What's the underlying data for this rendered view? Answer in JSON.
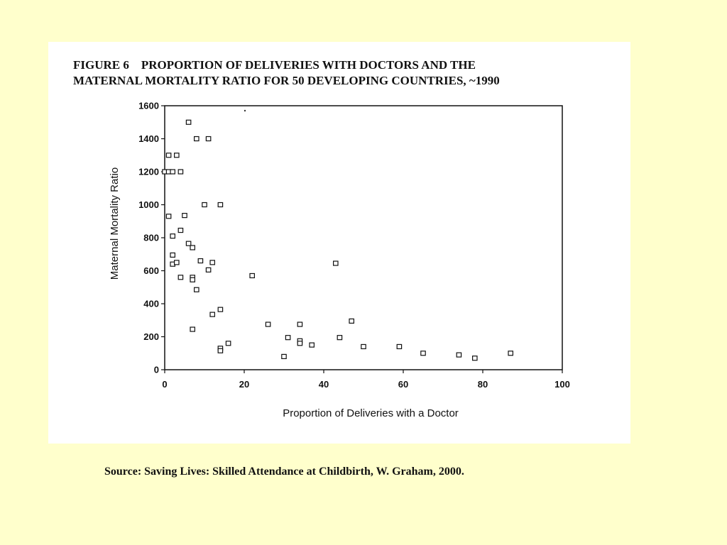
{
  "slide": {
    "background": "#ffffcc",
    "source_text": "Source: Saving Lives: Skilled Attendance at Childbirth, W. Graham, 2000."
  },
  "figure": {
    "title_line1": "FIGURE 6    PROPORTION OF DELIVERIES WITH DOCTORS AND THE",
    "title_line2": "MATERNAL MORTALITY RATIO FOR 50 DEVELOPING COUNTRIES, ~1990"
  },
  "chart_data": {
    "type": "scatter",
    "title": "FIGURE 6 PROPORTION OF DELIVERIES WITH DOCTORS AND THE MATERNAL MORTALITY RATIO FOR 50 DEVELOPING COUNTRIES, ~1990",
    "xlabel": "Proportion of Deliveries with a Doctor",
    "ylabel": "Maternal Mortality Ratio",
    "xlim": [
      0,
      100
    ],
    "ylim": [
      0,
      1600
    ],
    "xticks": [
      0,
      20,
      40,
      60,
      80,
      100
    ],
    "yticks": [
      0,
      200,
      400,
      600,
      800,
      1000,
      1200,
      1400,
      1600
    ],
    "grid": false,
    "marker": "open-square",
    "points": [
      [
        0,
        1200
      ],
      [
        1,
        1300
      ],
      [
        1,
        1200
      ],
      [
        2,
        1200
      ],
      [
        3,
        1300
      ],
      [
        4,
        1200
      ],
      [
        6,
        1500
      ],
      [
        8,
        1400
      ],
      [
        11,
        1400
      ],
      [
        10,
        1000
      ],
      [
        14,
        1000
      ],
      [
        1,
        930
      ],
      [
        5,
        935
      ],
      [
        2,
        810
      ],
      [
        4,
        845
      ],
      [
        6,
        765
      ],
      [
        7,
        740
      ],
      [
        2,
        695
      ],
      [
        2,
        640
      ],
      [
        3,
        650
      ],
      [
        9,
        660
      ],
      [
        12,
        650
      ],
      [
        11,
        605
      ],
      [
        4,
        560
      ],
      [
        7,
        560
      ],
      [
        7,
        545
      ],
      [
        8,
        485
      ],
      [
        22,
        570
      ],
      [
        43,
        645
      ],
      [
        12,
        335
      ],
      [
        14,
        365
      ],
      [
        7,
        245
      ],
      [
        14,
        130
      ],
      [
        14,
        115
      ],
      [
        16,
        160
      ],
      [
        26,
        275
      ],
      [
        31,
        195
      ],
      [
        30,
        80
      ],
      [
        34,
        275
      ],
      [
        34,
        175
      ],
      [
        34,
        160
      ],
      [
        37,
        150
      ],
      [
        44,
        195
      ],
      [
        47,
        295
      ],
      [
        50,
        140
      ],
      [
        59,
        140
      ],
      [
        65,
        100
      ],
      [
        74,
        90
      ],
      [
        78,
        70
      ],
      [
        87,
        100
      ]
    ]
  }
}
